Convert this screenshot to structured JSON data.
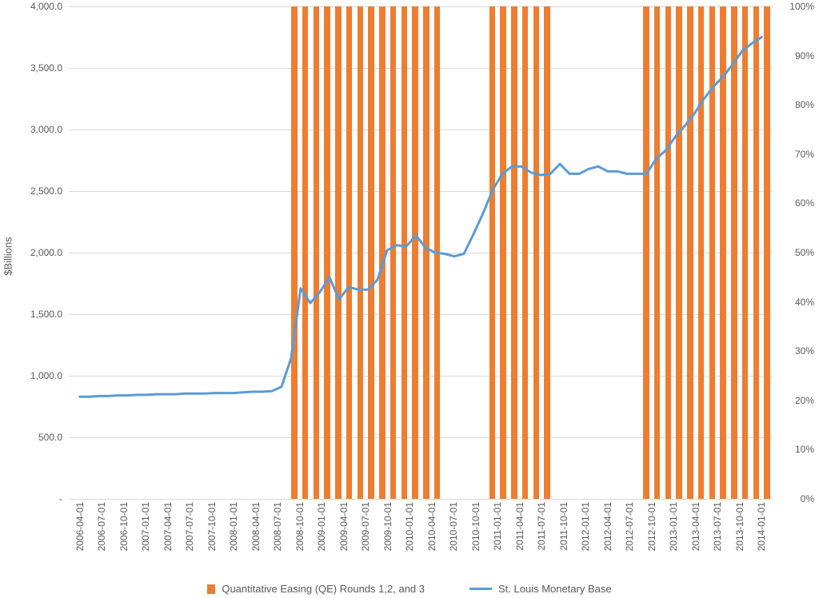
{
  "chart": {
    "type": "combo-bar-line",
    "background_color": "#ffffff",
    "grid_color": "#d9d9d9",
    "text_color": "#595959",
    "font_family": "Segoe UI",
    "label_fontsize": 12,
    "axis_title_fontsize": 13,
    "y_left": {
      "title": "$Billions",
      "min": 0,
      "max": 4000,
      "step": 500,
      "ticks": [
        "-",
        "500.0",
        "1,000.0",
        "1,500.0",
        "2,000.0",
        "2,500.0",
        "3,000.0",
        "3,500.0",
        "4,000.0"
      ]
    },
    "y_right": {
      "min": 0,
      "max": 100,
      "step": 10,
      "ticks": [
        "0%",
        "10%",
        "20%",
        "30%",
        "40%",
        "50%",
        "60%",
        "70%",
        "80%",
        "90%",
        "100%"
      ]
    },
    "x_labels": [
      "2006-04-01",
      "2006-07-01",
      "2006-10-01",
      "2007-01-01",
      "2007-04-01",
      "2007-07-01",
      "2007-10-01",
      "2008-01-01",
      "2008-04-01",
      "2008-07-01",
      "2008-10-01",
      "2009-01-01",
      "2009-04-01",
      "2009-07-01",
      "2009-10-01",
      "2010-01-01",
      "2010-04-01",
      "2010-07-01",
      "2010-10-01",
      "2011-01-01",
      "2011-04-01",
      "2011-07-01",
      "2011-10-01",
      "2012-01-01",
      "2012-04-01",
      "2012-07-01",
      "2012-10-01",
      "2013-01-01",
      "2013-04-01",
      "2013-07-01",
      "2013-10-01",
      "2014-01-01"
    ],
    "series_bars": {
      "name": "Quantitative Easing (QE) Rounds 1,2, and 3",
      "color": "#ed7d31",
      "bar_width_ratio": 0.55,
      "values_pct": [
        0,
        0,
        0,
        0,
        0,
        0,
        0,
        0,
        0,
        0,
        100,
        100,
        100,
        100,
        100,
        100,
        100,
        0,
        0,
        100,
        100,
        100,
        0,
        0,
        0,
        0,
        100,
        100,
        100,
        100,
        100,
        100
      ],
      "pairs_per_slot": 2
    },
    "series_line": {
      "name": "St. Louis Monetary Base",
      "color": "#5b9bd5",
      "line_width": 3,
      "values": [
        830,
        830,
        835,
        835,
        840,
        840,
        845,
        845,
        850,
        850,
        850,
        855,
        855,
        855,
        860,
        860,
        860,
        865,
        870,
        870,
        875,
        910,
        1140,
        1710,
        1590,
        1680,
        1800,
        1620,
        1720,
        1700,
        1700,
        1780,
        2020,
        2060,
        2050,
        2140,
        2040,
        2000,
        1990,
        1970,
        1990,
        2150,
        2320,
        2510,
        2640,
        2700,
        2700,
        2650,
        2630,
        2640,
        2720,
        2640,
        2640,
        2680,
        2700,
        2660,
        2660,
        2640,
        2640,
        2640,
        2760,
        2830,
        2940,
        3030,
        3130,
        3250,
        3350,
        3430,
        3530,
        3640,
        3700,
        3750
      ],
      "points_per_slot_hint": 2.25
    },
    "legend": {
      "items": [
        {
          "kind": "bar",
          "color": "#ed7d31",
          "label": "Quantitative Easing (QE) Rounds 1,2, and 3"
        },
        {
          "kind": "line",
          "color": "#5b9bd5",
          "label": "St. Louis Monetary Base"
        }
      ]
    }
  }
}
